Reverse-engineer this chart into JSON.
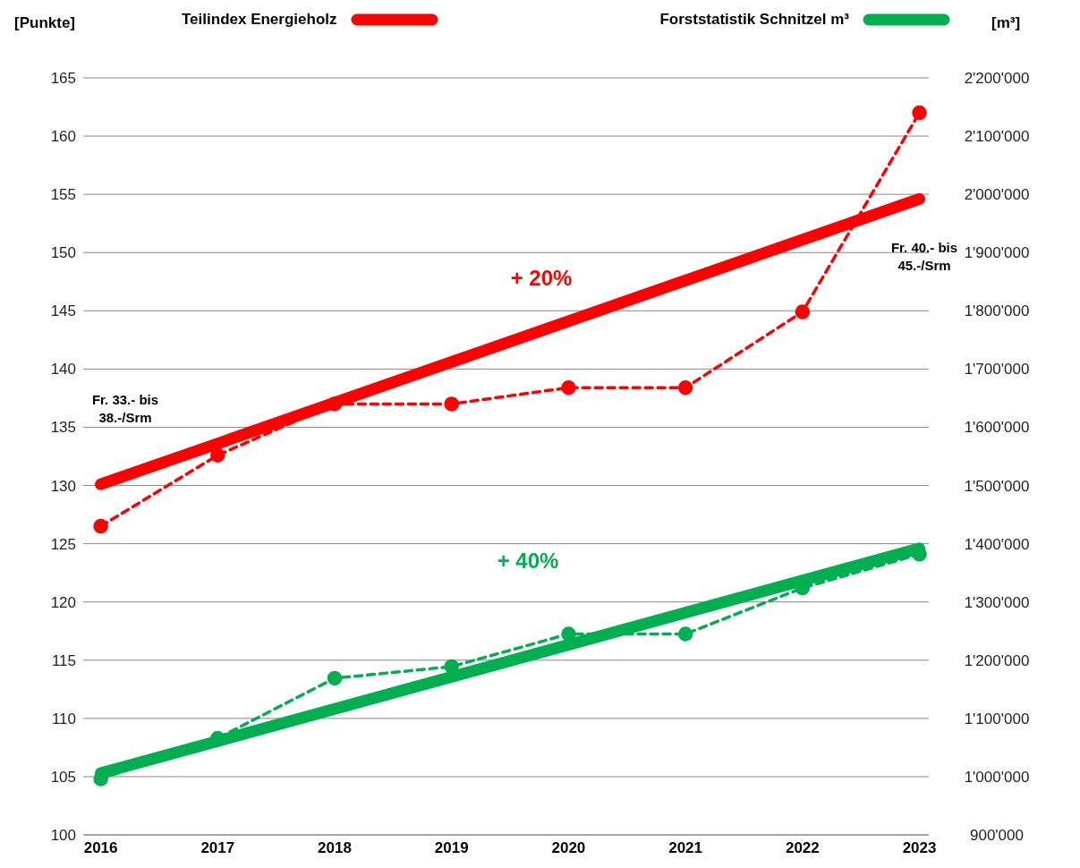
{
  "chart_data": {
    "type": "line",
    "ylabel": "[Punkte]",
    "y2label": "[m³]",
    "xlim": [
      2015.85,
      2023.08
    ],
    "xticks": [
      2016,
      2017,
      2018,
      2019,
      2020,
      2021,
      2022,
      2023
    ],
    "ylim": [
      100,
      165
    ],
    "yticks": [
      100,
      105,
      110,
      115,
      120,
      125,
      130,
      135,
      140,
      145,
      150,
      155,
      160,
      165
    ],
    "y2lim": [
      900000,
      2200000
    ],
    "y2ticks": [
      {
        "value": 900000,
        "label": "900'000"
      },
      {
        "value": 1000000,
        "label": "1'000'000"
      },
      {
        "value": 1100000,
        "label": "1'100'000"
      },
      {
        "value": 1200000,
        "label": "1'200'000"
      },
      {
        "value": 1300000,
        "label": "1'300'000"
      },
      {
        "value": 1400000,
        "label": "1'400'000"
      },
      {
        "value": 1500000,
        "label": "1'500'000"
      },
      {
        "value": 1600000,
        "label": "1'600'000"
      },
      {
        "value": 1700000,
        "label": "1'700'000"
      },
      {
        "value": 1800000,
        "label": "1'800'000"
      },
      {
        "value": 1900000,
        "label": "1'900'000"
      },
      {
        "value": 2000000,
        "label": "2'000'000"
      },
      {
        "value": 2100000,
        "label": "2'100'000"
      },
      {
        "value": 2200000,
        "label": "2'200'000"
      }
    ],
    "grid": "y",
    "legend": "top",
    "series": [
      {
        "color": "#ff0000",
        "x": [
          2016,
          2017,
          2018,
          2019,
          2020,
          2021,
          2022,
          2023
        ],
        "values": [
          126.5,
          132.6,
          137.0,
          137.0,
          138.4,
          138.4,
          144.9,
          162.0
        ],
        "marker": "circle",
        "line_style": "dashed"
      },
      {
        "name": "Teilindex Energieholz",
        "color": "#ff0000",
        "x": [
          2016,
          2023
        ],
        "values": [
          130.1,
          154.6
        ],
        "marker": "none",
        "line_style": "solid"
      },
      {
        "color": "#00b050",
        "axis": "y2",
        "x": [
          2016,
          2017,
          2018,
          2019,
          2020,
          2021,
          2022,
          2023
        ],
        "values": [
          996000,
          1066000,
          1169000,
          1189000,
          1245000,
          1245000,
          1324000,
          1382000
        ],
        "marker": "circle",
        "line_style": "dashed"
      },
      {
        "name": "Forststatistik Schnitzel m³",
        "color": "#00b050",
        "axis": "y2",
        "x": [
          2016,
          2023
        ],
        "values": [
          1006000,
          1392000
        ],
        "marker": "none",
        "line_style": "solid"
      }
    ],
    "annotations": [
      "+ 20%",
      "+ 40%",
      "Fr. 33.- bis\n38.-/Srm",
      "Fr. 40.- bis\n45.-/Srm"
    ]
  }
}
